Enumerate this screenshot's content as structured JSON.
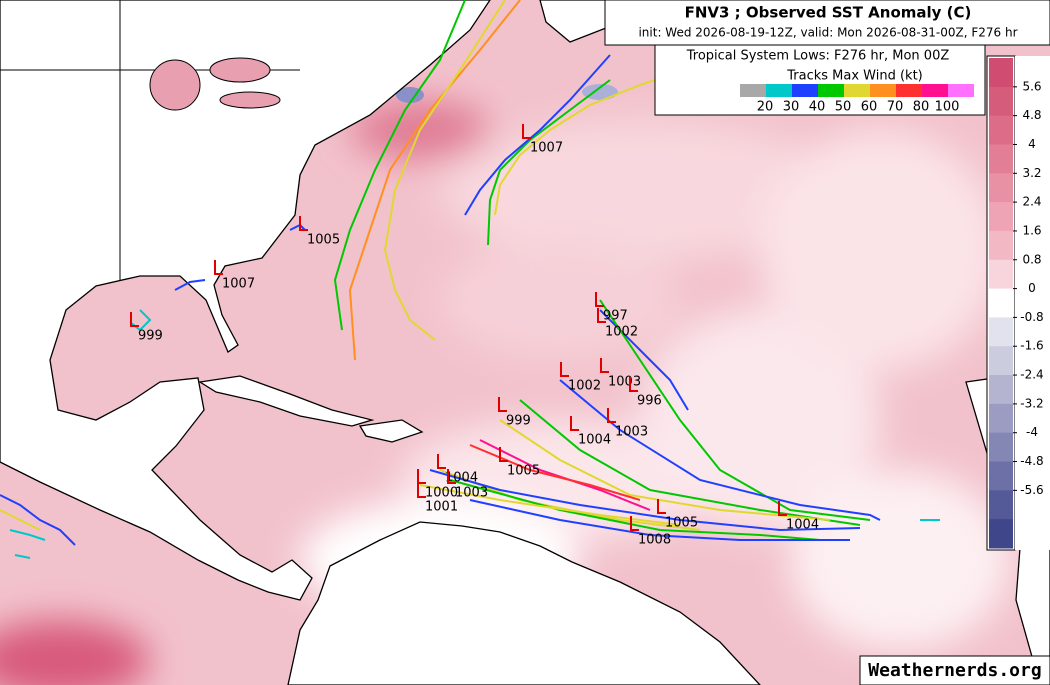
{
  "header": {
    "title": "FNV3 ; Observed SST Anomaly (C)",
    "subtitle": "init: Wed 2026-08-19-12Z, valid: Mon 2026-08-31-00Z, F276 hr",
    "lows_title": "Tropical System Lows: F276 hr, Mon 00Z"
  },
  "wind_legend": {
    "title": "Tracks Max Wind (kt)",
    "colors": [
      "#a8a8a8",
      "#00c8c8",
      "#2040ff",
      "#00c800",
      "#e0d830",
      "#ff9020",
      "#ff3030",
      "#ff1090",
      "#ff70ff"
    ],
    "labels": [
      20,
      30,
      40,
      50,
      60,
      70,
      80,
      100
    ]
  },
  "colorbar": {
    "ticks": [
      5.6,
      4.8,
      4,
      3.2,
      2.4,
      1.6,
      0.8,
      0,
      -0.8,
      -1.6,
      -2.4,
      -3.2,
      -4,
      -4.8,
      -5.6
    ],
    "colors": [
      "#d04c70",
      "#d65c7c",
      "#dc6c88",
      "#e27e96",
      "#e890a4",
      "#eea4b4",
      "#f2b8c4",
      "#f8d4dc",
      "#ffffff",
      "#e2e2ee",
      "#ccccdf",
      "#b4b4d0",
      "#9c9cc2",
      "#8486b4",
      "#6c70a6",
      "#545a98",
      "#40468a"
    ]
  },
  "lows": [
    1007,
    1005,
    1007,
    999,
    997,
    1002,
    1002,
    1003,
    996,
    1003,
    1004,
    999,
    1005,
    1004,
    1003,
    1001,
    1008,
    1005,
    1004,
    1000
  ],
  "watermark": "Weathernerds.org"
}
